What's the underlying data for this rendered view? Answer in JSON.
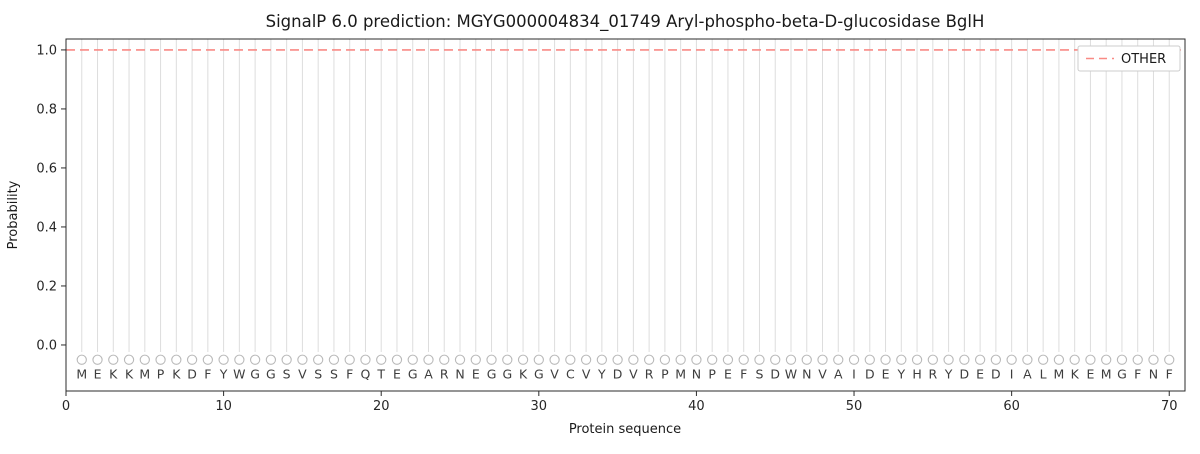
{
  "chart_data": {
    "type": "line",
    "title": "SignalP 6.0 prediction: MGYG000004834_01749 Aryl-phospho-beta-D-glucosidase BglH",
    "xlabel": "Protein sequence",
    "ylabel": "Probability",
    "x_ticks": [
      0,
      10,
      20,
      30,
      40,
      50,
      60,
      70
    ],
    "y_ticks": [
      "0.0",
      "0.2",
      "0.4",
      "0.6",
      "0.8",
      "1.0"
    ],
    "xlim": [
      0,
      71
    ],
    "ylim": [
      -0.156,
      1.037
    ],
    "grid": "light vertical line at each residue position, no horizontal gridlines",
    "legend_position": "upper right",
    "series": [
      {
        "name": "OTHER",
        "style": "dashed",
        "color": "#f98a85",
        "constant_y": 1.0,
        "x_start": 0,
        "x_end": 71
      }
    ],
    "sequence": "MEKKMPKDFYWGGSVSSFQTEGARNEGGKGVCVYDVRPMNPEFSDWNVAIDEYHRYDEDIALMKEMGFNF",
    "sequence_positions": "1-70",
    "residue_marker": {
      "symbol": "circle-open",
      "y": -0.05,
      "color": "#b9b9b9"
    },
    "residue_letter_y": -0.1
  }
}
